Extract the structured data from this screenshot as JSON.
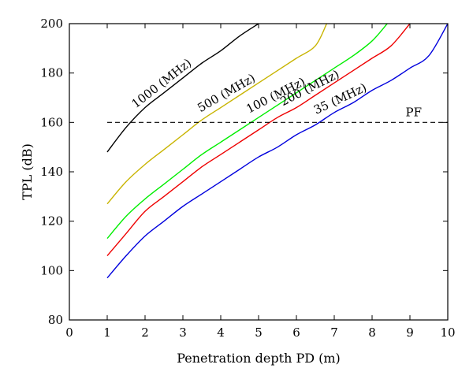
{
  "chart_data": {
    "type": "line",
    "xlabel": "Penetration depth PD (m)",
    "ylabel": "TPL (dB)",
    "xlim": [
      0,
      10
    ],
    "ylim": [
      80,
      200
    ],
    "xticks": [
      0,
      1,
      2,
      3,
      4,
      5,
      6,
      7,
      8,
      9,
      10
    ],
    "yticks": [
      80,
      100,
      120,
      140,
      160,
      180,
      200
    ],
    "grid": false,
    "legend": "inline labels on curves",
    "series": [
      {
        "name": "1000 (MHz)",
        "color": "#000000",
        "x": [
          1,
          1.5,
          2,
          2.5,
          3,
          3.5,
          4,
          4.5,
          5
        ],
        "y": [
          148,
          158,
          166,
          172,
          178,
          184,
          189,
          195,
          200
        ]
      },
      {
        "name": "500 (MHz)",
        "color": "#c8b400",
        "x": [
          1,
          1.5,
          2,
          2.5,
          3,
          3.5,
          4,
          4.5,
          5,
          5.5,
          6,
          6.5,
          6.8
        ],
        "y": [
          127,
          136,
          143,
          149,
          155,
          161,
          166,
          171,
          176,
          181,
          186,
          191,
          200
        ]
      },
      {
        "name": "100 (MHz)",
        "color": "#00ee00",
        "x": [
          1,
          1.5,
          2,
          2.5,
          3,
          3.5,
          4,
          4.5,
          5,
          5.5,
          6,
          6.5,
          7,
          7.5,
          8,
          8.4
        ],
        "y": [
          113,
          122,
          129,
          135,
          141,
          147,
          152,
          157,
          162,
          167,
          172,
          177,
          182,
          187,
          193,
          200
        ]
      },
      {
        "name": "200 (MHz)",
        "color": "#ee0000",
        "x": [
          1,
          1.5,
          2,
          2.5,
          3,
          3.5,
          4,
          4.5,
          5,
          5.5,
          6,
          6.5,
          7,
          7.5,
          8,
          8.5,
          9
        ],
        "y": [
          106,
          115,
          124,
          130,
          136,
          142,
          147,
          152,
          157,
          162,
          166,
          171,
          176,
          181,
          186,
          191,
          200
        ]
      },
      {
        "name": "35 (MHz)",
        "color": "#0000dd",
        "x": [
          1,
          1.5,
          2,
          2.5,
          3,
          3.5,
          4,
          4.5,
          5,
          5.5,
          6,
          6.5,
          7,
          7.5,
          8,
          8.5,
          9,
          9.5,
          10
        ],
        "y": [
          97,
          106,
          114,
          120,
          126,
          131,
          136,
          141,
          146,
          150,
          155,
          159,
          164,
          168,
          173,
          177,
          182,
          187,
          200
        ]
      }
    ],
    "reference_lines": [
      {
        "name": "PF",
        "y": 160,
        "style": "dashed",
        "color": "#000000"
      }
    ]
  }
}
